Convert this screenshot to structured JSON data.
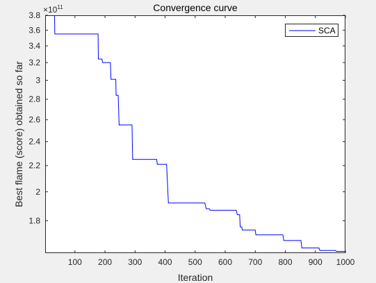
{
  "chart_data": {
    "type": "line",
    "title": "Convergence curve",
    "xlabel": "Iteration",
    "ylabel": "Best flame (score) obtained so far",
    "y_exponent_label": "×10",
    "y_exponent_power": "11",
    "y_scale": "log",
    "xlim": [
      1,
      1000
    ],
    "ylim": [
      160000000000.0,
      380000000000.0
    ],
    "x_ticks": [
      100,
      200,
      300,
      400,
      500,
      600,
      700,
      800,
      900,
      1000
    ],
    "y_ticks": [
      180000000000.0,
      200000000000.0,
      220000000000.0,
      240000000000.0,
      260000000000.0,
      280000000000.0,
      300000000000.0,
      320000000000.0,
      340000000000.0,
      360000000000.0,
      380000000000.0
    ],
    "y_tick_labels": [
      "1.8",
      "2",
      "2.2",
      "2.4",
      "2.6",
      "2.8",
      "3",
      "3.2",
      "3.4",
      "3.6",
      "3.8"
    ],
    "grid": false,
    "legend_position": "top-right",
    "series": [
      {
        "name": "SCA",
        "color": "#0000ff",
        "step": true,
        "points": [
          [
            1,
            385000000000.0
          ],
          [
            32,
            385000000000.0
          ],
          [
            33,
            355000000000.0
          ],
          [
            177,
            355000000000.0
          ],
          [
            178,
            324000000000.0
          ],
          [
            190,
            324000000000.0
          ],
          [
            192,
            320000000000.0
          ],
          [
            218,
            320000000000.0
          ],
          [
            220,
            301000000000.0
          ],
          [
            236,
            301000000000.0
          ],
          [
            237,
            284000000000.0
          ],
          [
            244,
            284000000000.0
          ],
          [
            247,
            255000000000.0
          ],
          [
            290,
            255000000000.0
          ],
          [
            292,
            225000000000.0
          ],
          [
            372,
            225000000000.0
          ],
          [
            374,
            221000000000.0
          ],
          [
            405,
            221000000000.0
          ],
          [
            411,
            192000000000.0
          ],
          [
            532,
            192000000000.0
          ],
          [
            537,
            188000000000.0
          ],
          [
            547,
            188000000000.0
          ],
          [
            550,
            187000000000.0
          ],
          [
            637,
            187000000000.0
          ],
          [
            640,
            184000000000.0
          ],
          [
            648,
            184000000000.0
          ],
          [
            650,
            176000000000.0
          ],
          [
            655,
            176000000000.0
          ],
          [
            657,
            174000000000.0
          ],
          [
            700,
            174000000000.0
          ],
          [
            702,
            171000000000.0
          ],
          [
            792,
            171000000000.0
          ],
          [
            795,
            167500000000.0
          ],
          [
            852,
            167500000000.0
          ],
          [
            855,
            163000000000.0
          ],
          [
            912,
            163000000000.0
          ],
          [
            915,
            161500000000.0
          ],
          [
            967,
            161500000000.0
          ],
          [
            970,
            161000000000.0
          ],
          [
            1000,
            161000000000.0
          ]
        ]
      }
    ]
  }
}
